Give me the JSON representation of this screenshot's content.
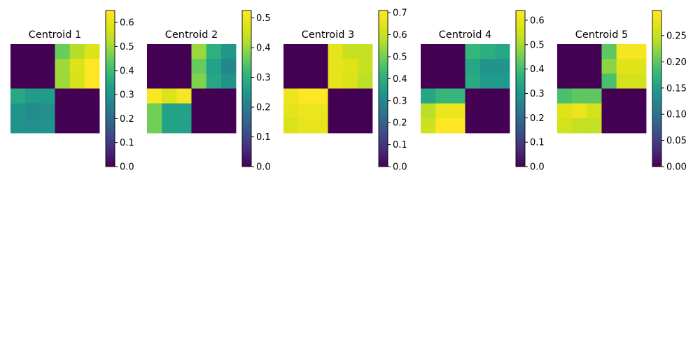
{
  "chart_data": [
    {
      "type": "heatmap",
      "title": "Centroid 1",
      "colormap": "viridis",
      "colorbar": {
        "min": 0,
        "max": 0.65,
        "ticks": [
          0.0,
          0.1,
          0.2,
          0.3,
          0.4,
          0.5,
          0.6
        ],
        "tick_labels": [
          "0.0",
          "0.1",
          "0.2",
          "0.3",
          "0.4",
          "0.5",
          "0.6"
        ]
      },
      "values": [
        [
          0,
          0,
          0,
          0.45,
          0.52,
          0.58
        ],
        [
          0,
          0,
          0,
          0.5,
          0.58,
          0.65
        ],
        [
          0,
          0,
          0,
          0.5,
          0.57,
          0.65
        ],
        [
          0.35,
          0.32,
          0.32,
          0,
          0,
          0
        ],
        [
          0.3,
          0.28,
          0.29,
          0,
          0,
          0
        ],
        [
          0.3,
          0.29,
          0.3,
          0,
          0,
          0
        ]
      ]
    },
    {
      "type": "heatmap",
      "title": "Centroid 2",
      "colormap": "viridis",
      "colorbar": {
        "min": 0,
        "max": 0.525,
        "ticks": [
          0.0,
          0.1,
          0.2,
          0.3,
          0.4,
          0.5
        ],
        "tick_labels": [
          "0.0",
          "0.1",
          "0.2",
          "0.3",
          "0.4",
          "0.5"
        ]
      },
      "values": [
        [
          0,
          0,
          0,
          0.4,
          0.3,
          0.25
        ],
        [
          0,
          0,
          0,
          0.36,
          0.27,
          0.22
        ],
        [
          0,
          0,
          0,
          0.38,
          0.28,
          0.24
        ],
        [
          0.52,
          0.47,
          0.51,
          0,
          0,
          0
        ],
        [
          0.37,
          0.27,
          0.27,
          0,
          0,
          0
        ],
        [
          0.37,
          0.27,
          0.27,
          0,
          0,
          0
        ]
      ]
    },
    {
      "type": "heatmap",
      "title": "Centroid 3",
      "colormap": "viridis",
      "colorbar": {
        "min": 0,
        "max": 0.71,
        "ticks": [
          0.0,
          0.1,
          0.2,
          0.3,
          0.4,
          0.5,
          0.6,
          0.7
        ],
        "tick_labels": [
          "0.0",
          "0.1",
          "0.2",
          "0.3",
          "0.4",
          "0.5",
          "0.6",
          "0.7"
        ]
      },
      "values": [
        [
          0,
          0,
          0,
          0.65,
          0.6,
          0.6
        ],
        [
          0,
          0,
          0,
          0.66,
          0.64,
          0.6
        ],
        [
          0,
          0,
          0,
          0.66,
          0.63,
          0.58
        ],
        [
          0.67,
          0.71,
          0.71,
          0,
          0,
          0
        ],
        [
          0.65,
          0.67,
          0.67,
          0,
          0,
          0
        ],
        [
          0.63,
          0.66,
          0.66,
          0,
          0,
          0
        ]
      ]
    },
    {
      "type": "heatmap",
      "title": "Centroid 4",
      "colormap": "viridis",
      "colorbar": {
        "min": 0,
        "max": 0.64,
        "ticks": [
          0.0,
          0.1,
          0.2,
          0.3,
          0.4,
          0.5,
          0.6
        ],
        "tick_labels": [
          "0.0",
          "0.1",
          "0.2",
          "0.3",
          "0.4",
          "0.5",
          "0.6"
        ]
      },
      "values": [
        [
          0,
          0,
          0,
          0.38,
          0.36,
          0.34
        ],
        [
          0,
          0,
          0,
          0.34,
          0.3,
          0.3
        ],
        [
          0,
          0,
          0,
          0.35,
          0.31,
          0.31
        ],
        [
          0.34,
          0.38,
          0.38,
          0,
          0,
          0
        ],
        [
          0.52,
          0.6,
          0.6,
          0,
          0,
          0
        ],
        [
          0.55,
          0.64,
          0.64,
          0,
          0,
          0
        ]
      ]
    },
    {
      "type": "heatmap",
      "title": "Centroid 5",
      "colormap": "viridis",
      "colorbar": {
        "min": 0,
        "max": 0.298,
        "ticks": [
          0.0,
          0.05,
          0.1,
          0.15,
          0.2,
          0.25
        ],
        "tick_labels": [
          "0.00",
          "0.05",
          "0.10",
          "0.15",
          "0.20",
          "0.25"
        ]
      },
      "values": [
        [
          0,
          0,
          0,
          0.2,
          0.29,
          0.29
        ],
        [
          0,
          0,
          0,
          0.22,
          0.27,
          0.27
        ],
        [
          0,
          0,
          0,
          0.19,
          0.26,
          0.26
        ],
        [
          0.19,
          0.2,
          0.2,
          0,
          0,
          0
        ],
        [
          0.27,
          0.28,
          0.26,
          0,
          0,
          0
        ],
        [
          0.26,
          0.25,
          0.25,
          0,
          0,
          0
        ]
      ]
    }
  ]
}
